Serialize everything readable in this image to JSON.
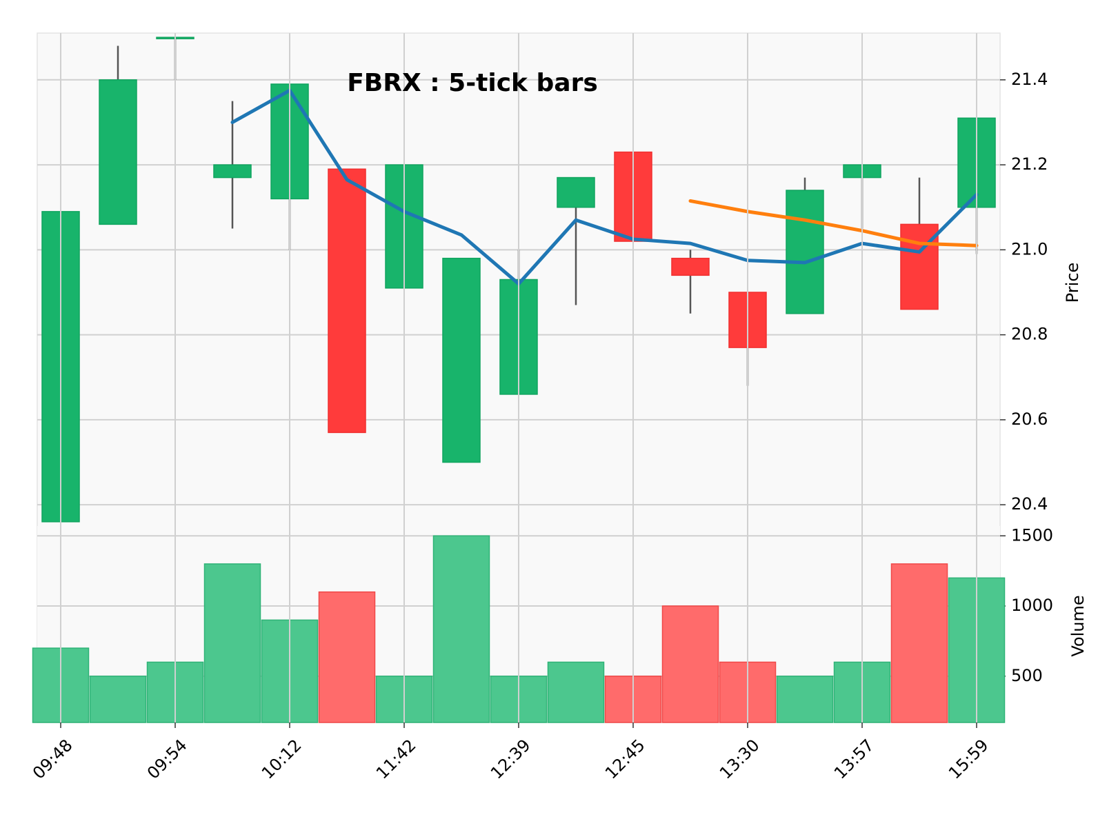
{
  "chart_data": {
    "type": "candlestick",
    "title": "FBRX : 5-tick bars",
    "price_axis": {
      "label": "Price",
      "ylim": [
        20.35,
        21.51
      ],
      "ticks": [
        20.4,
        20.6,
        20.8,
        21.0,
        21.2,
        21.4
      ],
      "tick_labels": [
        "20.4",
        "20.6",
        "20.8",
        "21.0",
        "21.2",
        "21.4"
      ],
      "side": "right"
    },
    "volume_axis": {
      "label": "Volume",
      "ylim": [
        170,
        1570
      ],
      "ticks": [
        500,
        1000,
        1500
      ],
      "tick_labels": [
        "500",
        "1000",
        "1500"
      ],
      "side": "right"
    },
    "x_tick_labels": [
      "09:48",
      "09:54",
      "10:12",
      "11:42",
      "12:39",
      "12:45",
      "13:30",
      "13:57",
      "15:59"
    ],
    "x_tick_bar_index": [
      0,
      2,
      4,
      6,
      8,
      10,
      12,
      14,
      16
    ],
    "grid": true,
    "colors": {
      "up": "#18b46b",
      "down": "#ff3b3b",
      "volume_up": "#4cc78e",
      "volume_down": "#ff6b6b",
      "ma_short": "#1f77b4",
      "ma_long": "#ff7f0e",
      "wick": "#555555",
      "plot_bg": "#f9f9f9"
    },
    "bars": [
      {
        "open": 20.36,
        "high": 21.09,
        "low": 20.36,
        "close": 21.09,
        "volume": 700
      },
      {
        "open": 21.06,
        "high": 21.48,
        "low": 21.06,
        "close": 21.4,
        "volume": 500
      },
      {
        "open": 21.5,
        "high": 21.5,
        "low": 21.4,
        "close": 21.5,
        "volume": 600
      },
      {
        "open": 21.17,
        "high": 21.35,
        "low": 21.05,
        "close": 21.2,
        "volume": 1300
      },
      {
        "open": 21.12,
        "high": 21.39,
        "low": 21.0,
        "close": 21.39,
        "volume": 900
      },
      {
        "open": 21.19,
        "high": 21.19,
        "low": 20.57,
        "close": 20.57,
        "volume": 1100
      },
      {
        "open": 20.91,
        "high": 21.2,
        "low": 20.91,
        "close": 21.2,
        "volume": 500
      },
      {
        "open": 20.5,
        "high": 20.98,
        "low": 20.5,
        "close": 20.98,
        "volume": 1500
      },
      {
        "open": 20.66,
        "high": 21.0,
        "low": 20.66,
        "close": 20.93,
        "volume": 500
      },
      {
        "open": 21.1,
        "high": 21.17,
        "low": 20.87,
        "close": 21.17,
        "volume": 600
      },
      {
        "open": 21.23,
        "high": 21.23,
        "low": 21.02,
        "close": 21.02,
        "volume": 500
      },
      {
        "open": 20.98,
        "high": 21.0,
        "low": 20.85,
        "close": 20.94,
        "volume": 1000
      },
      {
        "open": 20.9,
        "high": 20.9,
        "low": 20.68,
        "close": 20.77,
        "volume": 600
      },
      {
        "open": 20.85,
        "high": 21.17,
        "low": 20.85,
        "close": 21.14,
        "volume": 500
      },
      {
        "open": 21.17,
        "high": 21.2,
        "low": 21.05,
        "close": 21.2,
        "volume": 600
      },
      {
        "open": 21.06,
        "high": 21.17,
        "low": 20.86,
        "close": 20.86,
        "volume": 1300
      },
      {
        "open": 21.1,
        "high": 21.31,
        "low": 20.99,
        "close": 21.31,
        "volume": 1200
      }
    ],
    "moving_averages": [
      {
        "values": [
          null,
          null,
          null,
          21.3,
          21.375,
          21.165,
          21.09,
          21.035,
          20.92,
          21.07,
          21.025,
          21.015,
          20.975,
          20.97,
          21.015,
          20.995,
          21.13
        ]
      },
      {
        "values": [
          null,
          null,
          null,
          null,
          null,
          null,
          null,
          null,
          null,
          null,
          null,
          21.115,
          21.09,
          21.07,
          21.045,
          21.015,
          21.01
        ]
      }
    ]
  }
}
